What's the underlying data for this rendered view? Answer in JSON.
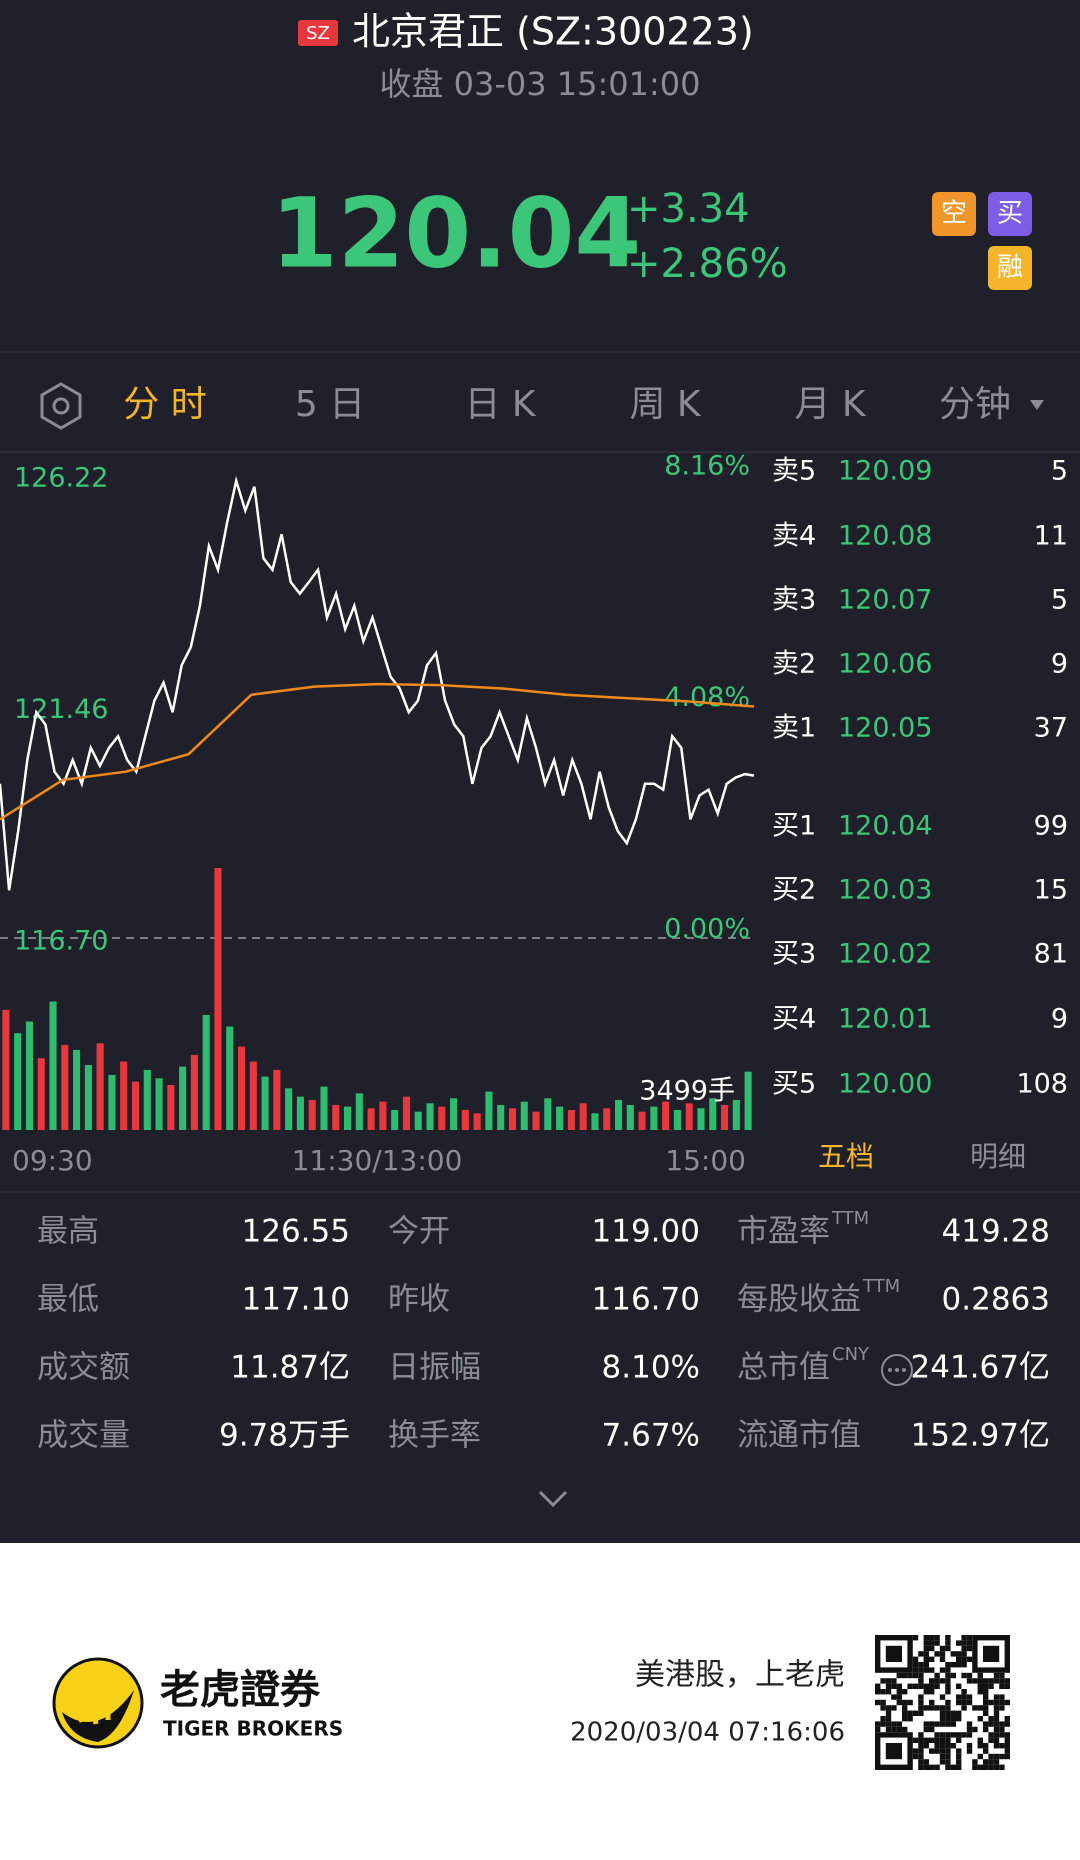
{
  "header": {
    "badge": "SZ",
    "title": "北京君正 (SZ:300223)",
    "subtitle": "收盘 03-03 15:01:00"
  },
  "quote": {
    "price": "120.04",
    "change": "+3.34",
    "change_pct": "+2.86%",
    "icons": [
      "空",
      "买",
      "融"
    ]
  },
  "tabs": [
    "分 时",
    "5 日",
    "日 K",
    "周 K",
    "月 K",
    "分钟"
  ],
  "chart_data": {
    "type": "line",
    "xlim": [
      0,
      240
    ],
    "xticks": [
      {
        "value": 0,
        "label": "09:30"
      },
      {
        "value": 120,
        "label": "11:30/13:00"
      },
      {
        "value": 240,
        "label": "15:00"
      }
    ],
    "ylim": [
      116.7,
      126.22
    ],
    "yticks": [
      {
        "value": 116.7,
        "label": "116.70"
      },
      {
        "value": 121.46,
        "label": "121.46"
      },
      {
        "value": 126.22,
        "label": "126.22"
      }
    ],
    "y2lim": [
      0,
      8.16
    ],
    "y2ticks": [
      {
        "value": 0,
        "label": "0.00%"
      },
      {
        "value": 4.08,
        "label": "4.08%"
      },
      {
        "value": 8.16,
        "label": "8.16%"
      }
    ],
    "series": [
      {
        "color": "#ffffff",
        "values": [
          119.87,
          117.68,
          118.9,
          120.36,
          121.34,
          121.09,
          120.12,
          119.87,
          120.36,
          119.87,
          120.61,
          120.24,
          120.61,
          120.85,
          120.36,
          120.12,
          120.85,
          121.58,
          121.95,
          121.34,
          122.31,
          122.68,
          123.53,
          124.76,
          124.27,
          125.24,
          126.1,
          125.49,
          125.98,
          124.51,
          124.27,
          125.0,
          124.02,
          123.78,
          124.02,
          124.27,
          123.29,
          123.78,
          123.05,
          123.53,
          122.8,
          123.29,
          122.68,
          122.07,
          121.83,
          121.34,
          121.58,
          122.31,
          122.56,
          121.58,
          121.09,
          120.85,
          119.87,
          120.61,
          120.85,
          121.34,
          120.85,
          120.36,
          121.22,
          120.61,
          119.87,
          120.36,
          119.63,
          120.36,
          119.87,
          119.14,
          120.12,
          119.39,
          118.9,
          118.65,
          119.14,
          119.87,
          119.87,
          119.75,
          120.85,
          120.61,
          119.14,
          119.63,
          119.75,
          119.26,
          119.87,
          120.0,
          120.07,
          120.04
        ]
      },
      {
        "color": "#f08a1c",
        "values": [
          119.14,
          119.95,
          120.12,
          120.48,
          121.7,
          121.87,
          121.92,
          121.9,
          121.83,
          121.7,
          121.63,
          121.56,
          121.46
        ]
      }
    ],
    "volume": {
      "ylim": [
        0,
        16000
      ],
      "last_label": "3499手",
      "values": [
        7200,
        5800,
        6500,
        4300,
        7700,
        5100,
        4800,
        3900,
        5200,
        3300,
        4100,
        2900,
        3600,
        3100,
        2700,
        3800,
        4500,
        6900,
        15700,
        6200,
        5000,
        4100,
        3200,
        3600,
        2500,
        2000,
        1800,
        2600,
        1500,
        1400,
        2200,
        1300,
        1700,
        1200,
        2000,
        1100,
        1600,
        1400,
        1900,
        1200,
        1000,
        2300,
        1500,
        1300,
        1700,
        1100,
        1900,
        1400,
        1200,
        1600,
        1000,
        1300,
        1800,
        1500,
        1100,
        1400,
        1700,
        1200,
        1600,
        1300,
        1900,
        1500,
        1800,
        3499
      ],
      "colors": [
        "#e8383d",
        "#2ebd70",
        "#2ebd70",
        "#e8383d",
        "#2ebd70",
        "#e8383d",
        "#2ebd70",
        "#2ebd70",
        "#e8383d",
        "#2ebd70",
        "#e8383d",
        "#e8383d",
        "#2ebd70",
        "#2ebd70",
        "#e8383d",
        "#2ebd70",
        "#e8383d",
        "#2ebd70",
        "#e8383d",
        "#2ebd70",
        "#e8383d",
        "#e8383d",
        "#2ebd70",
        "#e8383d",
        "#2ebd70",
        "#2ebd70",
        "#e8383d",
        "#2ebd70",
        "#e8383d",
        "#2ebd70",
        "#2ebd70",
        "#e8383d",
        "#e8383d",
        "#2ebd70",
        "#e8383d",
        "#2ebd70",
        "#2ebd70",
        "#e8383d",
        "#2ebd70",
        "#e8383d",
        "#e8383d",
        "#2ebd70",
        "#2ebd70",
        "#e8383d",
        "#2ebd70",
        "#e8383d",
        "#2ebd70",
        "#2ebd70",
        "#e8383d",
        "#e8383d",
        "#2ebd70",
        "#e8383d",
        "#2ebd70",
        "#2ebd70",
        "#e8383d",
        "#2ebd70",
        "#e8383d",
        "#2ebd70",
        "#e8383d",
        "#2ebd70",
        "#2ebd70",
        "#e8383d",
        "#2ebd70",
        "#2ebd70"
      ]
    }
  },
  "order_book": {
    "rows": [
      {
        "label": "卖5",
        "price": "120.09",
        "size": "5"
      },
      {
        "label": "卖4",
        "price": "120.08",
        "size": "11"
      },
      {
        "label": "卖3",
        "price": "120.07",
        "size": "5"
      },
      {
        "label": "卖2",
        "price": "120.06",
        "size": "9"
      },
      {
        "label": "卖1",
        "price": "120.05",
        "size": "37"
      },
      {
        "label": "买1",
        "price": "120.04",
        "size": "99"
      },
      {
        "label": "买2",
        "price": "120.03",
        "size": "15"
      },
      {
        "label": "买3",
        "price": "120.02",
        "size": "81"
      },
      {
        "label": "买4",
        "price": "120.01",
        "size": "9"
      },
      {
        "label": "买5",
        "price": "120.00",
        "size": "108"
      }
    ],
    "tabs": [
      "五档",
      "明细"
    ]
  },
  "stats": [
    {
      "label": "最高",
      "value": "126.55"
    },
    {
      "label": "今开",
      "value": "119.00"
    },
    {
      "label": "市盈率",
      "sup": "TTM",
      "value": "419.28"
    },
    {
      "label": "最低",
      "value": "117.10"
    },
    {
      "label": "昨收",
      "value": "116.70"
    },
    {
      "label": "每股收益",
      "sup": "TTM",
      "value": "0.2863"
    },
    {
      "label": "成交额",
      "value": "11.87亿"
    },
    {
      "label": "日振幅",
      "value": "8.10%"
    },
    {
      "label": "总市值",
      "sup": "CNY",
      "value": "241.67亿"
    },
    {
      "label": "成交量",
      "value": "9.78万手"
    },
    {
      "label": "换手率",
      "value": "7.67%"
    },
    {
      "label": "流通市值",
      "value": "152.97亿"
    }
  ],
  "footer": {
    "brand": "老虎證券",
    "brand_en": "TIGER BROKERS",
    "slogan": "美港股，上老虎",
    "timestamp": "2020/03/04 07:16:06"
  }
}
